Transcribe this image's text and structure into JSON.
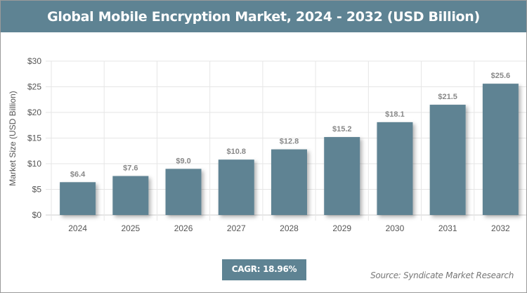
{
  "chart_data": {
    "type": "bar",
    "title": "Global Mobile Encryption Market, 2024 - 2032 (USD Billion)",
    "ylabel": "Market Size (USD Billion)",
    "xlabel": "",
    "categories": [
      "2024",
      "2025",
      "2026",
      "2027",
      "2028",
      "2029",
      "2030",
      "2031",
      "2032"
    ],
    "values": [
      6.4,
      7.6,
      9.0,
      10.8,
      12.8,
      15.2,
      18.1,
      21.5,
      25.6
    ],
    "data_labels": [
      "$6.4",
      "$7.6",
      "$9.0",
      "$10.8",
      "$12.8",
      "$15.2",
      "$18.1",
      "$21.5",
      "$25.6"
    ],
    "ylim": [
      0,
      30
    ],
    "yticks": [
      "$0",
      "$5",
      "$10",
      "$15",
      "$20",
      "$25",
      "$30"
    ],
    "grid": true,
    "bar_color": "#5e8393"
  },
  "cagr": "CAGR: 18.96%",
  "source": "Source: Syndicate Market Research"
}
